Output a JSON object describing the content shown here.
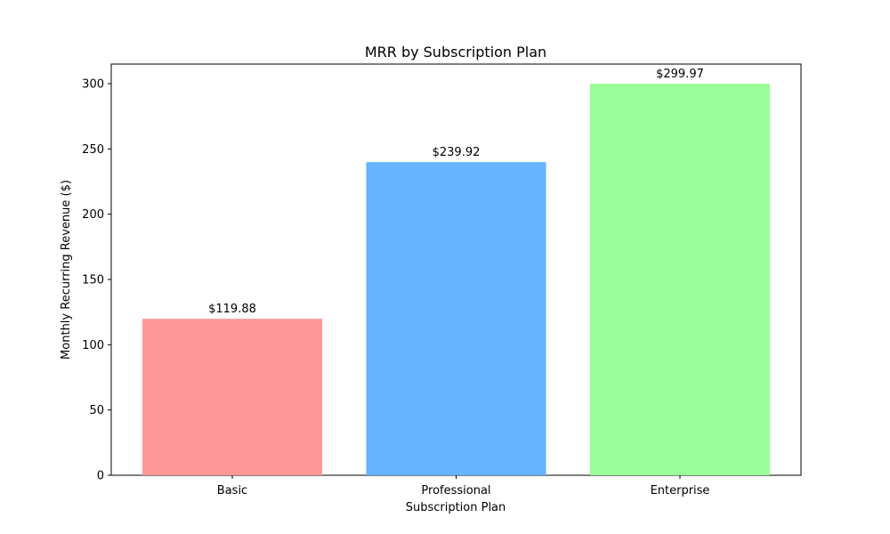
{
  "chart_data": {
    "type": "bar",
    "title": "MRR by Subscription Plan",
    "xlabel": "Subscription Plan",
    "ylabel": "Monthly Recurring Revenue ($)",
    "categories": [
      "Basic",
      "Professional",
      "Enterprise"
    ],
    "values": [
      119.88,
      239.92,
      299.97
    ],
    "value_labels": [
      "$119.88",
      "$239.92",
      "$299.97"
    ],
    "colors": [
      "#ff9999",
      "#66b3ff",
      "#99ff99"
    ],
    "ylim": [
      0,
      315
    ],
    "yticks": [
      0,
      50,
      100,
      150,
      200,
      250,
      300
    ],
    "grid": false
  }
}
